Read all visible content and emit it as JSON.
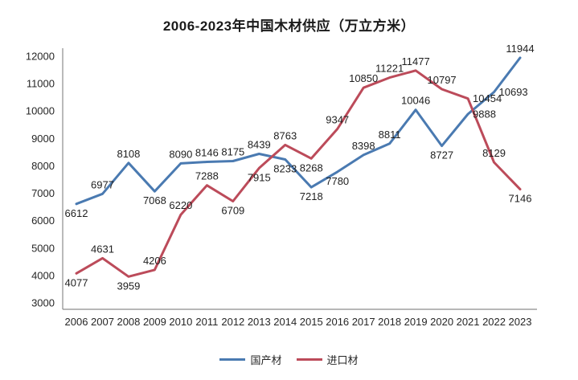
{
  "chart_data": {
    "type": "line",
    "title": "2006-2023年中国木材供应（万立方米）",
    "x": [
      "2006",
      "2007",
      "2008",
      "2009",
      "2010",
      "2011",
      "2012",
      "2013",
      "2014",
      "2015",
      "2016",
      "2017",
      "2018",
      "2019",
      "2020",
      "2021",
      "2022",
      "2023"
    ],
    "series": [
      {
        "name": "国产材",
        "color": "#4a7ab1",
        "values": [
          6612,
          6977,
          8108,
          7068,
          8090,
          8146,
          8175,
          8439,
          8233,
          7218,
          7780,
          8398,
          8811,
          10046,
          8727,
          9888,
          10693,
          11944
        ],
        "label_pos": [
          "b",
          "a",
          "a",
          "b",
          "a",
          "a",
          "a",
          "a",
          "b",
          "b",
          "b",
          "a",
          "a",
          "a",
          "b",
          "r",
          "r",
          "a"
        ]
      },
      {
        "name": "进口材",
        "color": "#bc4b5a",
        "values": [
          4077,
          4631,
          3959,
          4206,
          6220,
          7288,
          6709,
          7915,
          8763,
          8268,
          9347,
          10850,
          11221,
          11477,
          10797,
          10454,
          8129,
          7146
        ],
        "label_pos": [
          "b",
          "a",
          "b",
          "a",
          "a",
          "a",
          "b",
          "b",
          "a",
          "b",
          "a",
          "a",
          "a",
          "a",
          "a",
          "r",
          "a",
          "b"
        ]
      }
    ],
    "ylim": [
      3000,
      12000
    ],
    "ytick_step": 1000,
    "yticks": [
      3000,
      4000,
      5000,
      6000,
      7000,
      8000,
      9000,
      10000,
      11000,
      12000
    ],
    "grid": false,
    "legend_position": "bottom",
    "axis_color": "#8c8c8c",
    "text_color": "#262626"
  }
}
